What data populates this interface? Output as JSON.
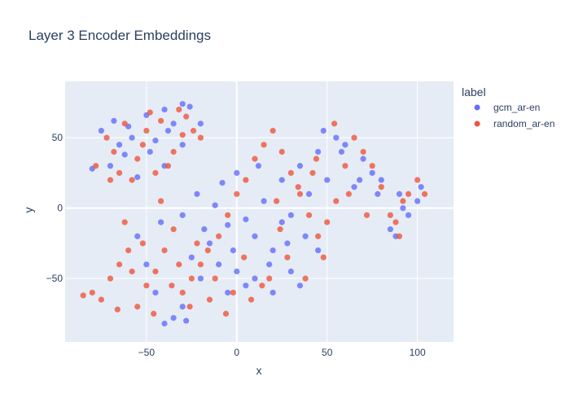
{
  "chart_data": {
    "type": "scatter",
    "title": "Layer 3 Encoder Embeddings",
    "xlabel": "x",
    "ylabel": "y",
    "xlim": [
      -95,
      120
    ],
    "ylim": [
      -95,
      90
    ],
    "xticks": [
      -50,
      0,
      50,
      100
    ],
    "yticks": [
      -50,
      0,
      50
    ],
    "xtick_labels": [
      "−50",
      "0",
      "50",
      "100"
    ],
    "ytick_labels": [
      "−50",
      "0",
      "50"
    ],
    "grid": true,
    "legend": {
      "title": "label",
      "position": "right"
    },
    "series": [
      {
        "name": "gcm_ar-en",
        "color": "#636efa",
        "points": [
          [
            -75,
            55
          ],
          [
            -68,
            62
          ],
          [
            -60,
            58
          ],
          [
            -50,
            66
          ],
          [
            -40,
            70
          ],
          [
            -30,
            74
          ],
          [
            -26,
            72
          ],
          [
            -45,
            48
          ],
          [
            -62,
            38
          ],
          [
            -70,
            30
          ],
          [
            -55,
            22
          ],
          [
            -40,
            30
          ],
          [
            -30,
            45
          ],
          [
            -20,
            60
          ],
          [
            -35,
            60
          ],
          [
            -80,
            28
          ],
          [
            -58,
            50
          ],
          [
            -48,
            40
          ],
          [
            -38,
            55
          ],
          [
            -65,
            45
          ],
          [
            -22,
            10
          ],
          [
            -12,
            2
          ],
          [
            -5,
            -12
          ],
          [
            -15,
            -25
          ],
          [
            -25,
            -35
          ],
          [
            -10,
            -40
          ],
          [
            0,
            -45
          ],
          [
            5,
            -55
          ],
          [
            -5,
            -60
          ],
          [
            -20,
            -50
          ],
          [
            -30,
            -70
          ],
          [
            -35,
            -78
          ],
          [
            -40,
            -82
          ],
          [
            -28,
            -80
          ],
          [
            -45,
            -60
          ],
          [
            -50,
            -40
          ],
          [
            -55,
            -20
          ],
          [
            -42,
            -10
          ],
          [
            -30,
            -5
          ],
          [
            -18,
            -15
          ],
          [
            10,
            -20
          ],
          [
            20,
            -30
          ],
          [
            30,
            -45
          ],
          [
            25,
            -10
          ],
          [
            15,
            5
          ],
          [
            25,
            20
          ],
          [
            35,
            30
          ],
          [
            45,
            40
          ],
          [
            55,
            50
          ],
          [
            60,
            45
          ],
          [
            70,
            35
          ],
          [
            80,
            20
          ],
          [
            90,
            10
          ],
          [
            95,
            -5
          ],
          [
            100,
            5
          ],
          [
            85,
            -15
          ],
          [
            75,
            25
          ],
          [
            65,
            15
          ],
          [
            50,
            20
          ],
          [
            40,
            10
          ],
          [
            30,
            -5
          ],
          [
            45,
            -30
          ],
          [
            35,
            -55
          ],
          [
            20,
            -60
          ],
          [
            10,
            -50
          ],
          [
            -2,
            -30
          ],
          [
            5,
            -8
          ],
          [
            18,
            -40
          ],
          [
            28,
            -25
          ],
          [
            38,
            -20
          ],
          [
            48,
            55
          ],
          [
            58,
            40
          ],
          [
            68,
            20
          ],
          [
            78,
            10
          ],
          [
            88,
            -20
          ],
          [
            102,
            15
          ],
          [
            92,
            0
          ],
          [
            -8,
            18
          ],
          [
            0,
            25
          ],
          [
            12,
            30
          ]
        ]
      },
      {
        "name": "random_ar-en",
        "color": "#ef553b",
        "points": [
          [
            -78,
            30
          ],
          [
            -72,
            50
          ],
          [
            -65,
            25
          ],
          [
            -55,
            35
          ],
          [
            -50,
            55
          ],
          [
            -42,
            62
          ],
          [
            -35,
            40
          ],
          [
            -28,
            65
          ],
          [
            -20,
            50
          ],
          [
            -58,
            20
          ],
          [
            -68,
            40
          ],
          [
            -45,
            25
          ],
          [
            -32,
            70
          ],
          [
            -24,
            55
          ],
          [
            -62,
            60
          ],
          [
            -52,
            45
          ],
          [
            -38,
            30
          ],
          [
            -70,
            20
          ],
          [
            -48,
            68
          ],
          [
            -30,
            52
          ],
          [
            -80,
            -60
          ],
          [
            -75,
            -65
          ],
          [
            -70,
            -50
          ],
          [
            -65,
            -40
          ],
          [
            -60,
            -30
          ],
          [
            -55,
            -70
          ],
          [
            -50,
            -55
          ],
          [
            -45,
            -45
          ],
          [
            -40,
            -30
          ],
          [
            -35,
            -15
          ],
          [
            -30,
            -60
          ],
          [
            -25,
            -50
          ],
          [
            -20,
            -40
          ],
          [
            -15,
            -65
          ],
          [
            -10,
            -20
          ],
          [
            -5,
            -5
          ],
          [
            0,
            10
          ],
          [
            5,
            20
          ],
          [
            10,
            35
          ],
          [
            15,
            45
          ],
          [
            20,
            55
          ],
          [
            25,
            40
          ],
          [
            30,
            25
          ],
          [
            35,
            10
          ],
          [
            40,
            -5
          ],
          [
            45,
            -20
          ],
          [
            50,
            -10
          ],
          [
            55,
            5
          ],
          [
            60,
            30
          ],
          [
            65,
            50
          ],
          [
            70,
            40
          ],
          [
            75,
            30
          ],
          [
            80,
            15
          ],
          [
            85,
            -5
          ],
          [
            90,
            -20
          ],
          [
            95,
            10
          ],
          [
            100,
            20
          ],
          [
            88,
            -10
          ],
          [
            -62,
            -10
          ],
          [
            -52,
            -25
          ],
          [
            -42,
            5
          ],
          [
            -32,
            -40
          ],
          [
            -22,
            -25
          ],
          [
            -12,
            -50
          ],
          [
            -2,
            -60
          ],
          [
            8,
            -65
          ],
          [
            18,
            -50
          ],
          [
            28,
            -35
          ],
          [
            38,
            -50
          ],
          [
            48,
            -35
          ],
          [
            -85,
            -62
          ],
          [
            -66,
            -72
          ],
          [
            -46,
            -75
          ],
          [
            -26,
            -70
          ],
          [
            -6,
            -75
          ],
          [
            14,
            -55
          ],
          [
            24,
            -15
          ],
          [
            34,
            15
          ],
          [
            44,
            35
          ],
          [
            54,
            60
          ],
          [
            -58,
            -45
          ],
          [
            -36,
            -55
          ],
          [
            -16,
            -30
          ],
          [
            4,
            -35
          ],
          [
            22,
            5
          ],
          [
            42,
            25
          ],
          [
            62,
            10
          ],
          [
            72,
            -5
          ],
          [
            92,
            5
          ],
          [
            104,
            10
          ]
        ]
      }
    ]
  }
}
